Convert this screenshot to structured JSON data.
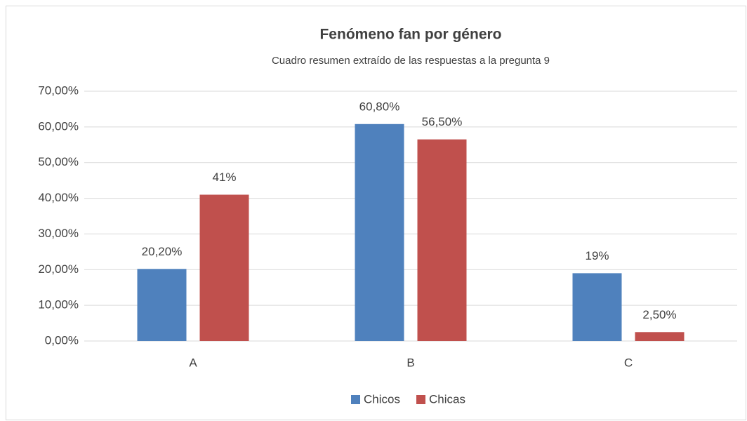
{
  "chart_data": {
    "type": "bar",
    "title": "Fenómeno fan por género",
    "subtitle": "Cuadro resumen extraído de las respuestas a la pregunta 9",
    "categories": [
      "A",
      "B",
      "C"
    ],
    "series": [
      {
        "name": "Chicos",
        "color": "#4f81bd",
        "values": [
          20.2,
          60.8,
          19
        ],
        "value_labels": [
          "20,20%",
          "60,80%",
          "19%"
        ]
      },
      {
        "name": "Chicas",
        "color": "#c0504d",
        "values": [
          41,
          56.5,
          2.5
        ],
        "value_labels": [
          "41%",
          "56,50%",
          "2,50%"
        ]
      }
    ],
    "ylim": [
      0,
      70
    ],
    "yticks": [
      {
        "value": 0,
        "label": "0,00%"
      },
      {
        "value": 10,
        "label": "10,00%"
      },
      {
        "value": 20,
        "label": "20,00%"
      },
      {
        "value": 30,
        "label": "30,00%"
      },
      {
        "value": 40,
        "label": "40,00%"
      },
      {
        "value": 50,
        "label": "50,00%"
      },
      {
        "value": 60,
        "label": "60,00%"
      },
      {
        "value": 70,
        "label": "70,00%"
      }
    ],
    "grid": true,
    "legend": "bottom"
  }
}
